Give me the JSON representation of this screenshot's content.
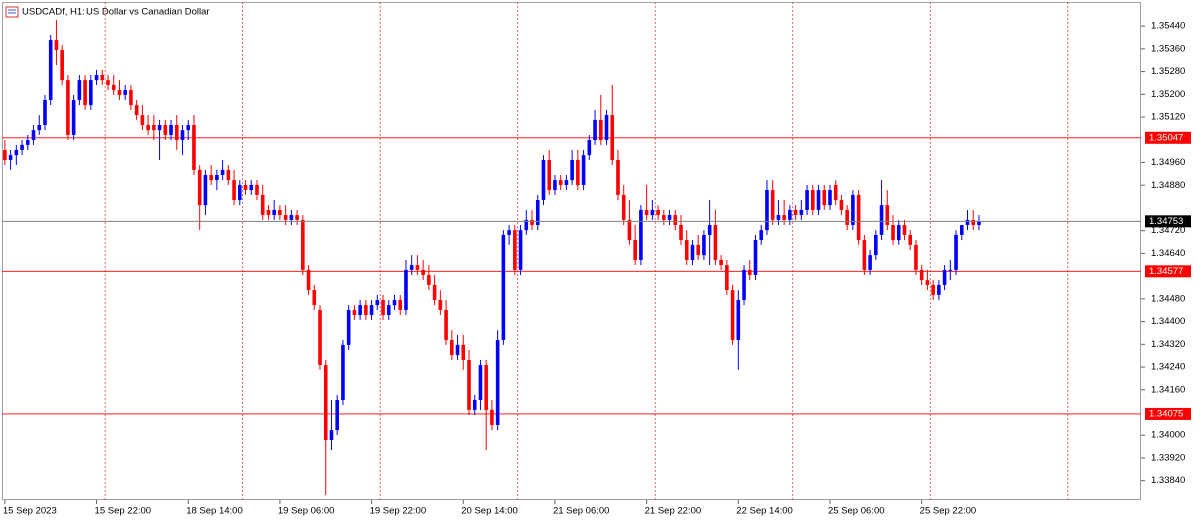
{
  "chart_data": {
    "type": "candlestick",
    "symbol": "USDCADf, H1:",
    "title": "US Dollar vs Canadian Dollar",
    "categories": [
      "15 Sep 2023",
      null,
      null,
      null,
      null,
      null,
      null,
      null,
      null,
      null,
      null,
      null,
      null,
      null,
      null,
      null,
      "15 Sep 22:00",
      null,
      null,
      null,
      null,
      null,
      null,
      null,
      null,
      null,
      null,
      null,
      null,
      null,
      null,
      null,
      "18 Sep 14:00",
      null,
      null,
      null,
      null,
      null,
      null,
      null,
      null,
      null,
      null,
      null,
      null,
      null,
      null,
      null,
      "19 Sep 06:00",
      null,
      null,
      null,
      null,
      null,
      null,
      null,
      null,
      null,
      null,
      null,
      null,
      null,
      null,
      null,
      "19 Sep 22:00",
      null,
      null,
      null,
      null,
      null,
      null,
      null,
      null,
      null,
      null,
      null,
      null,
      null,
      null,
      null,
      "20 Sep 14:00",
      null,
      null,
      null,
      null,
      null,
      null,
      null,
      null,
      null,
      null,
      null,
      null,
      null,
      null,
      null,
      "21 Sep 06:00",
      null,
      null,
      null,
      null,
      null,
      null,
      null,
      null,
      null,
      null,
      null,
      null,
      null,
      null,
      null,
      "21 Sep 22:00",
      null,
      null,
      null,
      null,
      null,
      null,
      null,
      null,
      null,
      null,
      null,
      null,
      null,
      null,
      null,
      "22 Sep 14:00",
      null,
      null,
      null,
      null,
      null,
      null,
      null,
      null,
      null,
      null,
      null,
      null,
      null,
      null,
      null,
      "25 Sep 06:00",
      null,
      null,
      null,
      null,
      null,
      null,
      null,
      null,
      null,
      null,
      null,
      null,
      null,
      null,
      null,
      "25 Sep 22:00",
      null,
      null,
      null,
      null,
      null,
      null,
      null,
      null,
      null,
      null
    ],
    "open": [
      1.35004,
      1.34969,
      1.34986,
      1.35004,
      1.35022,
      1.35039,
      1.35074,
      1.35092,
      1.3518,
      1.35391,
      1.35356,
      1.3525,
      1.35057,
      1.3518,
      1.3525,
      1.35162,
      1.3525,
      1.35268,
      1.3525,
      1.35233,
      1.35215,
      1.35198,
      1.35215,
      1.35162,
      1.35127,
      1.35092,
      1.35092,
      1.35074,
      1.35092,
      1.35057,
      1.35092,
      1.35039,
      1.35074,
      1.35092,
      1.34934,
      1.3481,
      1.34916,
      1.34898,
      1.34916,
      1.34934,
      1.34898,
      1.34828,
      1.34881,
      1.34863,
      1.34881,
      1.34846,
      1.34793,
      1.34775,
      1.34793,
      1.34775,
      1.34758,
      1.34775,
      1.34758,
      1.34582,
      1.34511,
      1.34441,
      1.34247,
      1.33983,
      1.34018,
      1.34124,
      1.34318,
      1.34441,
      1.34423,
      1.34458,
      1.34423,
      1.34458,
      1.34476,
      1.34423,
      1.34458,
      1.34476,
      1.34441,
      1.34582,
      1.34599,
      1.34582,
      1.34564,
      1.34529,
      1.34476,
      1.34441,
      1.34335,
      1.34282,
      1.34318,
      1.34265,
      1.34089,
      1.34124,
      1.34247,
      1.34089,
      1.34036,
      1.34335,
      1.34705,
      1.34722,
      1.34582,
      1.34722,
      1.34758,
      1.3474,
      1.34828,
      1.34969,
      1.34863,
      1.34898,
      1.34881,
      1.34898,
      1.34969,
      1.34881,
      1.34986,
      1.35039,
      1.3511,
      1.35039,
      1.35127,
      1.34969,
      1.34846,
      1.34758,
      1.34687,
      1.34617,
      1.34793,
      1.34775,
      1.34793,
      1.34775,
      1.34758,
      1.34775,
      1.3474,
      1.34687,
      1.34617,
      1.3467,
      1.34634,
      1.34705,
      1.3474,
      1.34617,
      1.34599,
      1.34511,
      1.34335,
      1.34476,
      1.34582,
      1.34564,
      1.34687,
      1.34722,
      1.34863,
      1.34758,
      1.34775,
      1.34758,
      1.34793,
      1.34775,
      1.34793,
      1.34863,
      1.34793,
      1.34863,
      1.3481,
      1.34881,
      1.34828,
      1.34793,
      1.3474,
      1.34846,
      1.34687,
      1.34582,
      1.34634,
      1.34705,
      1.3481,
      1.3474,
      1.34687,
      1.3474,
      1.34705,
      1.3467,
      1.34582,
      1.34546,
      1.34529,
      1.34494,
      1.34529,
      1.34582,
      1.34582,
      1.34705,
      1.3474,
      1.34758,
      1.3474
    ],
    "high": [
      1.35039,
      1.35004,
      1.35022,
      1.35039,
      1.35057,
      1.35092,
      1.35127,
      1.35198,
      1.35409,
      1.35462,
      1.35374,
      1.35268,
      1.35198,
      1.35268,
      1.35268,
      1.35268,
      1.35286,
      1.35286,
      1.35268,
      1.35268,
      1.3525,
      1.35233,
      1.35233,
      1.3518,
      1.35162,
      1.35127,
      1.35127,
      1.3511,
      1.3511,
      1.3511,
      1.35127,
      1.35092,
      1.3511,
      1.35127,
      1.34951,
      1.34934,
      1.34951,
      1.34934,
      1.34969,
      1.34951,
      1.34934,
      1.34898,
      1.34898,
      1.34898,
      1.34898,
      1.34881,
      1.3481,
      1.34828,
      1.3481,
      1.3481,
      1.34793,
      1.34793,
      1.34775,
      1.34599,
      1.34529,
      1.34458,
      1.34265,
      1.34124,
      1.34142,
      1.34335,
      1.34458,
      1.34458,
      1.34476,
      1.34476,
      1.34476,
      1.34494,
      1.34494,
      1.34476,
      1.34494,
      1.34494,
      1.34617,
      1.34634,
      1.34634,
      1.34617,
      1.34599,
      1.34564,
      1.34511,
      1.34476,
      1.3437,
      1.34353,
      1.34353,
      1.343,
      1.34142,
      1.34265,
      1.34265,
      1.34124,
      1.3437,
      1.34722,
      1.3474,
      1.3474,
      1.3474,
      1.34793,
      1.34793,
      1.34846,
      1.34986,
      1.35004,
      1.34916,
      1.34916,
      1.34916,
      1.35004,
      1.35004,
      1.35004,
      1.35057,
      1.35145,
      1.35198,
      1.35145,
      1.35233,
      1.35004,
      1.34881,
      1.34828,
      1.3474,
      1.3481,
      1.34881,
      1.34828,
      1.3481,
      1.34793,
      1.34793,
      1.34793,
      1.34775,
      1.34722,
      1.34687,
      1.34705,
      1.34722,
      1.34828,
      1.34793,
      1.34634,
      1.34617,
      1.34529,
      1.34511,
      1.34599,
      1.34617,
      1.34705,
      1.3474,
      1.34898,
      1.34898,
      1.34828,
      1.34828,
      1.3481,
      1.3481,
      1.34828,
      1.34881,
      1.34881,
      1.34881,
      1.34881,
      1.34881,
      1.34898,
      1.34846,
      1.3481,
      1.34863,
      1.34863,
      1.34705,
      1.34652,
      1.34722,
      1.34898,
      1.34863,
      1.34775,
      1.34758,
      1.34758,
      1.34722,
      1.34687,
      1.34599,
      1.34582,
      1.34546,
      1.34546,
      1.34599,
      1.34617,
      1.34722,
      1.3474,
      1.34793,
      1.34793,
      1.34775
    ],
    "low": [
      1.34951,
      1.34934,
      1.34951,
      1.34986,
      1.35004,
      1.35022,
      1.35057,
      1.35074,
      1.35162,
      1.35303,
      1.35233,
      1.35039,
      1.35039,
      1.35162,
      1.35145,
      1.35145,
      1.35233,
      1.35233,
      1.35215,
      1.35198,
      1.3518,
      1.3518,
      1.35145,
      1.3511,
      1.35074,
      1.35057,
      1.35039,
      1.34969,
      1.35039,
      1.35039,
      1.35004,
      1.34986,
      1.35039,
      1.34916,
      1.34722,
      1.34775,
      1.34881,
      1.34863,
      1.34898,
      1.34881,
      1.3481,
      1.3481,
      1.34846,
      1.34846,
      1.34828,
      1.34758,
      1.34758,
      1.34758,
      1.34758,
      1.3474,
      1.3474,
      1.3474,
      1.34564,
      1.34494,
      1.34441,
      1.3423,
      1.3379,
      1.33948,
      1.34001,
      1.34106,
      1.343,
      1.34406,
      1.34406,
      1.34406,
      1.34406,
      1.34441,
      1.34406,
      1.34406,
      1.34441,
      1.34423,
      1.34423,
      1.34564,
      1.34564,
      1.34546,
      1.34511,
      1.34458,
      1.34423,
      1.34318,
      1.34265,
      1.34265,
      1.3423,
      1.34071,
      1.34071,
      1.34089,
      1.33948,
      1.34018,
      1.34018,
      1.34318,
      1.3467,
      1.34564,
      1.34564,
      1.34705,
      1.34722,
      1.34722,
      1.3481,
      1.34846,
      1.34846,
      1.34863,
      1.34863,
      1.34881,
      1.34863,
      1.34863,
      1.34969,
      1.35022,
      1.35022,
      1.35022,
      1.34951,
      1.34828,
      1.3474,
      1.3467,
      1.34599,
      1.34599,
      1.34758,
      1.34758,
      1.34758,
      1.3474,
      1.3474,
      1.34722,
      1.3467,
      1.34599,
      1.34599,
      1.34617,
      1.34617,
      1.34599,
      1.34599,
      1.34582,
      1.34494,
      1.34318,
      1.3423,
      1.34458,
      1.34546,
      1.34546,
      1.3467,
      1.34705,
      1.3474,
      1.3474,
      1.3474,
      1.3474,
      1.34758,
      1.34758,
      1.34775,
      1.34775,
      1.34775,
      1.34793,
      1.34793,
      1.3481,
      1.34775,
      1.34722,
      1.34722,
      1.3467,
      1.34564,
      1.34564,
      1.34617,
      1.34687,
      1.34722,
      1.3467,
      1.3467,
      1.34687,
      1.34652,
      1.34564,
      1.34529,
      1.34511,
      1.34476,
      1.34476,
      1.34511,
      1.34546,
      1.34564,
      1.34687,
      1.34722,
      1.34722,
      1.34722
    ],
    "close": [
      1.34969,
      1.34986,
      1.35004,
      1.35022,
      1.35039,
      1.35074,
      1.35092,
      1.3518,
      1.35391,
      1.35356,
      1.3525,
      1.35057,
      1.3518,
      1.3525,
      1.35162,
      1.3525,
      1.35268,
      1.3525,
      1.35233,
      1.35215,
      1.35198,
      1.35215,
      1.35162,
      1.35127,
      1.35092,
      1.35074,
      1.35074,
      1.35092,
      1.35057,
      1.35092,
      1.35039,
      1.35074,
      1.35092,
      1.34934,
      1.3481,
      1.34916,
      1.34898,
      1.34916,
      1.34934,
      1.34898,
      1.34828,
      1.34881,
      1.34863,
      1.34881,
      1.34846,
      1.34775,
      1.34775,
      1.34793,
      1.34775,
      1.34758,
      1.34775,
      1.34758,
      1.34582,
      1.34511,
      1.34458,
      1.34247,
      1.33983,
      1.34018,
      1.34124,
      1.34318,
      1.34441,
      1.34423,
      1.34458,
      1.34423,
      1.34458,
      1.34476,
      1.34423,
      1.34458,
      1.34476,
      1.34441,
      1.34582,
      1.34599,
      1.34582,
      1.34564,
      1.34529,
      1.34476,
      1.34441,
      1.34335,
      1.34282,
      1.34318,
      1.34265,
      1.34089,
      1.34124,
      1.34247,
      1.34089,
      1.34036,
      1.34335,
      1.34705,
      1.34722,
      1.34582,
      1.34722,
      1.34758,
      1.3474,
      1.34828,
      1.34969,
      1.34863,
      1.34898,
      1.34881,
      1.34898,
      1.34969,
      1.34881,
      1.34986,
      1.35039,
      1.3511,
      1.35039,
      1.35127,
      1.34969,
      1.34846,
      1.34758,
      1.34687,
      1.34617,
      1.34793,
      1.34775,
      1.34793,
      1.34775,
      1.34758,
      1.34775,
      1.3474,
      1.34687,
      1.34617,
      1.3467,
      1.34634,
      1.34705,
      1.3474,
      1.34617,
      1.34599,
      1.34511,
      1.34335,
      1.34476,
      1.34582,
      1.34564,
      1.34687,
      1.34722,
      1.34863,
      1.34758,
      1.34775,
      1.34758,
      1.34793,
      1.34775,
      1.34793,
      1.34863,
      1.34793,
      1.34863,
      1.3481,
      1.34863,
      1.34828,
      1.34793,
      1.3474,
      1.34846,
      1.34687,
      1.34582,
      1.34634,
      1.34705,
      1.3481,
      1.3474,
      1.34687,
      1.3474,
      1.34705,
      1.3467,
      1.34582,
      1.34546,
      1.34529,
      1.34494,
      1.34529,
      1.34582,
      1.34582,
      1.34705,
      1.3474,
      1.34758,
      1.3474,
      1.34753
    ],
    "up_color": "#0000ff",
    "down_color": "#ff0000",
    "ylim": [
      1.33772,
      1.35525
    ],
    "yticks": [
      {
        "value": 1.3544,
        "label": "1.35440"
      },
      {
        "value": 1.3536,
        "label": "1.35360"
      },
      {
        "value": 1.3528,
        "label": "1.35280"
      },
      {
        "value": 1.352,
        "label": "1.35200"
      },
      {
        "value": 1.3512,
        "label": "1.35120"
      },
      {
        "value": 1.3496,
        "label": "1.34960"
      },
      {
        "value": 1.3488,
        "label": "1.34880"
      },
      {
        "value": 1.3472,
        "label": "1.34720"
      },
      {
        "value": 1.3464,
        "label": "1.34640"
      },
      {
        "value": 1.3448,
        "label": "1.34480"
      },
      {
        "value": 1.344,
        "label": "1.34400"
      },
      {
        "value": 1.3432,
        "label": "1.34320"
      },
      {
        "value": 1.3424,
        "label": "1.34240"
      },
      {
        "value": 1.3416,
        "label": "1.34160"
      },
      {
        "value": 1.34,
        "label": "1.34000"
      },
      {
        "value": 1.3392,
        "label": "1.33920"
      },
      {
        "value": 1.3384,
        "label": "1.33840"
      }
    ],
    "levels": [
      1.35047,
      1.34577,
      1.34075
    ],
    "level_color": "#ff0000",
    "last_price_color": "#808080"
  }
}
